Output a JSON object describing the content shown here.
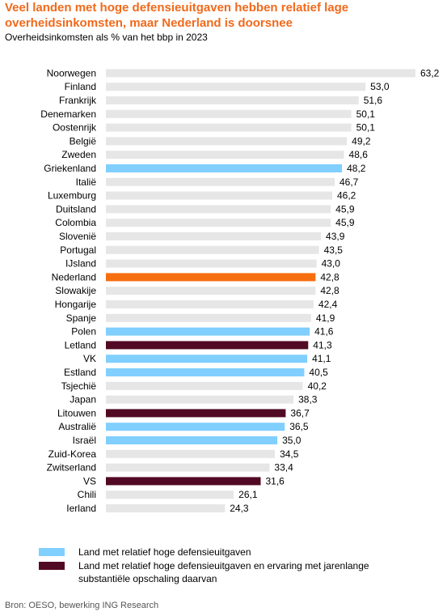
{
  "title": "Veel landen met hoge defensieuitgaven hebben relatief lage overheidsinkomsten, maar Nederland is doorsnee",
  "subtitle": "Overheidsinkomsten  als % van het bbp in 2023",
  "source": "Bron: OESO, bewerking ING Research",
  "colors": {
    "default": "#e6e6e6",
    "high_defense": "#80cfff",
    "high_defense_scaled": "#520a24",
    "netherlands": "#f66e0e"
  },
  "legend": [
    {
      "color_key": "high_defense",
      "label": "Land met relatief hoge defensieuitgaven"
    },
    {
      "color_key": "high_defense_scaled",
      "label": "Land met relatief hoge defensieuitgaven en ervaring met jarenlange substantiële opschaling daarvan"
    }
  ],
  "chart_data": {
    "type": "bar",
    "orientation": "horizontal",
    "title": "Veel landen met hoge defensieuitgaven hebben relatief lage overheidsinkomsten, maar Nederland is doorsnee",
    "subtitle": "Overheidsinkomsten  als % van het bbp in 2023",
    "xlim": [
      0,
      63.2
    ],
    "grid": false,
    "categories": [
      "Noorwegen",
      "Finland",
      "Frankrijk",
      "Denemarken",
      "Oostenrijk",
      "België",
      "Zweden",
      "Griekenland",
      "Italië",
      "Luxemburg",
      "Duitsland",
      "Colombia",
      "Slovenië",
      "Portugal",
      "IJsland",
      "Nederland",
      "Slowakije",
      "Hongarije",
      "Spanje",
      "Polen",
      "Letland",
      "VK",
      "Estland",
      "Tsjechië",
      "Japan",
      "Litouwen",
      "Australië",
      "Israël",
      "Zuid-Korea",
      "Zwitserland",
      "VS",
      "Chili",
      "Ierland"
    ],
    "values": [
      63.2,
      53.0,
      51.6,
      50.1,
      50.1,
      49.2,
      48.6,
      48.2,
      46.7,
      46.2,
      45.9,
      45.9,
      43.9,
      43.5,
      43.0,
      42.8,
      42.8,
      42.4,
      41.9,
      41.6,
      41.3,
      41.1,
      40.5,
      40.2,
      38.3,
      36.7,
      36.5,
      35.0,
      34.5,
      33.4,
      31.6,
      26.1,
      24.3
    ],
    "value_labels": [
      "63,2",
      "53,0",
      "51,6",
      "50,1",
      "50,1",
      "49,2",
      "48,6",
      "48,2",
      "46,7",
      "46,2",
      "45,9",
      "45,9",
      "43,9",
      "43,5",
      "43,0",
      "42,8",
      "42,8",
      "42,4",
      "41,9",
      "41,6",
      "41,3",
      "41,1",
      "40,5",
      "40,2",
      "38,3",
      "36,7",
      "36,5",
      "35,0",
      "34,5",
      "33,4",
      "31,6",
      "26,1",
      "24,3"
    ],
    "groups": [
      "default",
      "default",
      "default",
      "default",
      "default",
      "default",
      "default",
      "high_defense",
      "default",
      "default",
      "default",
      "default",
      "default",
      "default",
      "default",
      "netherlands",
      "default",
      "default",
      "default",
      "high_defense",
      "high_defense_scaled",
      "high_defense",
      "high_defense",
      "default",
      "default",
      "high_defense_scaled",
      "high_defense",
      "high_defense",
      "default",
      "default",
      "high_defense_scaled",
      "default",
      "default"
    ]
  }
}
